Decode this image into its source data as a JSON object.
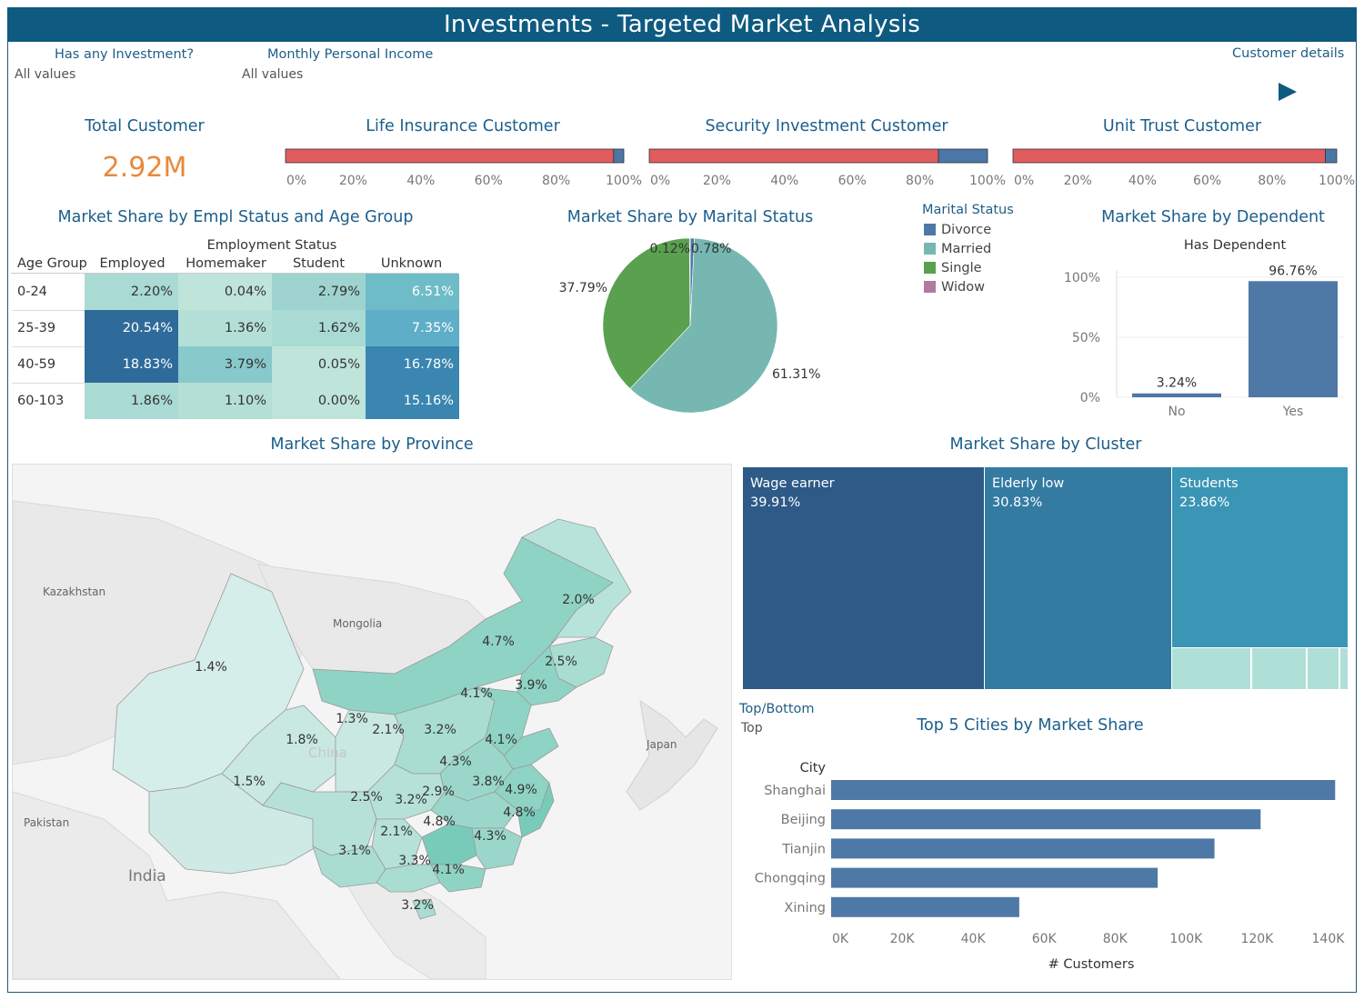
{
  "title": "Investments - Targeted Market Analysis",
  "filters": [
    {
      "label": "Has any Investment?",
      "value": "All values"
    },
    {
      "label": "Monthly Personal Income",
      "value": "All values"
    }
  ],
  "customer_details": {
    "label": "Customer details"
  },
  "kpi": {
    "total_label": "Total Customer",
    "total_value": "2.92M"
  },
  "colors": {
    "accent": "#0f5a80",
    "kpi": "#e8893a",
    "bar_red": "#e05c5f",
    "bar_blue": "#4a77a8",
    "title": "#1b5e8c"
  },
  "chart_data": [
    {
      "type": "bar",
      "id": "life",
      "title": "Life Insurance Customer",
      "ticks": [
        "0%",
        "20%",
        "40%",
        "60%",
        "80%",
        "100%"
      ],
      "values": [
        0.97,
        0.03
      ]
    },
    {
      "type": "bar",
      "id": "security",
      "title": "Security Investment Customer",
      "ticks": [
        "0%",
        "20%",
        "40%",
        "60%",
        "80%",
        "100%"
      ],
      "values": [
        0.855,
        0.145
      ]
    },
    {
      "type": "bar",
      "id": "unit",
      "title": "Unit Trust Customer",
      "ticks": [
        "0%",
        "20%",
        "40%",
        "60%",
        "80%",
        "100%"
      ],
      "values": [
        0.965,
        0.035
      ]
    },
    {
      "type": "heatmap",
      "id": "empl",
      "title": "Market Share by Empl Status and Age Group",
      "col_group_label": "Employment Status",
      "row_header": "Age Group",
      "columns": [
        "Employed",
        "Homemaker",
        "Student",
        "Unknown"
      ],
      "rows": [
        {
          "label": "0-24",
          "values": [
            "2.20%",
            "0.04%",
            "2.79%",
            "6.51%"
          ]
        },
        {
          "label": "25-39",
          "values": [
            "20.54%",
            "1.36%",
            "1.62%",
            "7.35%"
          ]
        },
        {
          "label": "40-59",
          "values": [
            "18.83%",
            "3.79%",
            "0.05%",
            "16.78%"
          ]
        },
        {
          "label": "60-103",
          "values": [
            "1.86%",
            "1.10%",
            "0.00%",
            "15.16%"
          ]
        }
      ]
    },
    {
      "type": "pie",
      "id": "marital",
      "title": "Market Share by Marital Status",
      "legend_title": "Marital Status",
      "slices": [
        {
          "name": "Divorce",
          "value": 0.78,
          "label": "0.78%",
          "color": "#4e79a7"
        },
        {
          "name": "Married",
          "value": 61.31,
          "label": "61.31%",
          "color": "#76b7b2"
        },
        {
          "name": "Single",
          "value": 37.79,
          "label": "37.79%",
          "color": "#59a14f"
        },
        {
          "name": "Widow",
          "value": 0.12,
          "label": "0.12%",
          "color": "#b07aa1"
        }
      ]
    },
    {
      "type": "bar",
      "id": "dependent",
      "title": "Market Share by Dependent",
      "xlabel": "Has Dependent",
      "categories": [
        "No",
        "Yes"
      ],
      "values": [
        3.24,
        96.76
      ],
      "labels": [
        "3.24%",
        "96.76%"
      ],
      "yticks": [
        "0%",
        "50%",
        "100%"
      ],
      "ylim": [
        0,
        100
      ]
    },
    {
      "type": "heatmap",
      "id": "province",
      "title": "Market Share by Province",
      "map_labels": [
        "Kazakhstan",
        "Mongolia",
        "China",
        "Japan",
        "Pakistan",
        "India"
      ],
      "values": [
        "2.0%",
        "4.7%",
        "2.5%",
        "1.4%",
        "3.9%",
        "4.1%",
        "1.3%",
        "2.1%",
        "3.2%",
        "1.8%",
        "4.1%",
        "4.3%",
        "3.8%",
        "4.9%",
        "1.5%",
        "2.5%",
        "3.2%",
        "2.9%",
        "4.8%",
        "4.8%",
        "2.1%",
        "4.3%",
        "3.1%",
        "3.3%",
        "4.1%",
        "3.2%"
      ]
    },
    {
      "type": "heatmap",
      "id": "cluster",
      "title": "Market Share by Cluster",
      "items": [
        {
          "name": "Wage earner",
          "label": "39.91%",
          "value": 39.91,
          "color": "#2e5a87"
        },
        {
          "name": "Elderly low",
          "label": "30.83%",
          "value": 30.83,
          "color": "#347ba2"
        },
        {
          "name": "Students",
          "label": "23.86%",
          "value": 23.86,
          "color": "#3b95b5"
        }
      ]
    },
    {
      "type": "bar",
      "id": "cities",
      "title": "Top 5 Cities by Market Share",
      "filter_label": "Top/Bottom",
      "filter_value": "Top",
      "ylabel": "City",
      "xlabel": "# Customers",
      "categories": [
        "Shanghai",
        "Beijing",
        "Tianjin",
        "Chongqing",
        "Xining"
      ],
      "values": [
        142000,
        121000,
        108000,
        92000,
        53000
      ],
      "xticks": [
        "0K",
        "20K",
        "40K",
        "60K",
        "80K",
        "100K",
        "120K",
        "140K"
      ],
      "xlim": [
        0,
        145000
      ]
    }
  ]
}
